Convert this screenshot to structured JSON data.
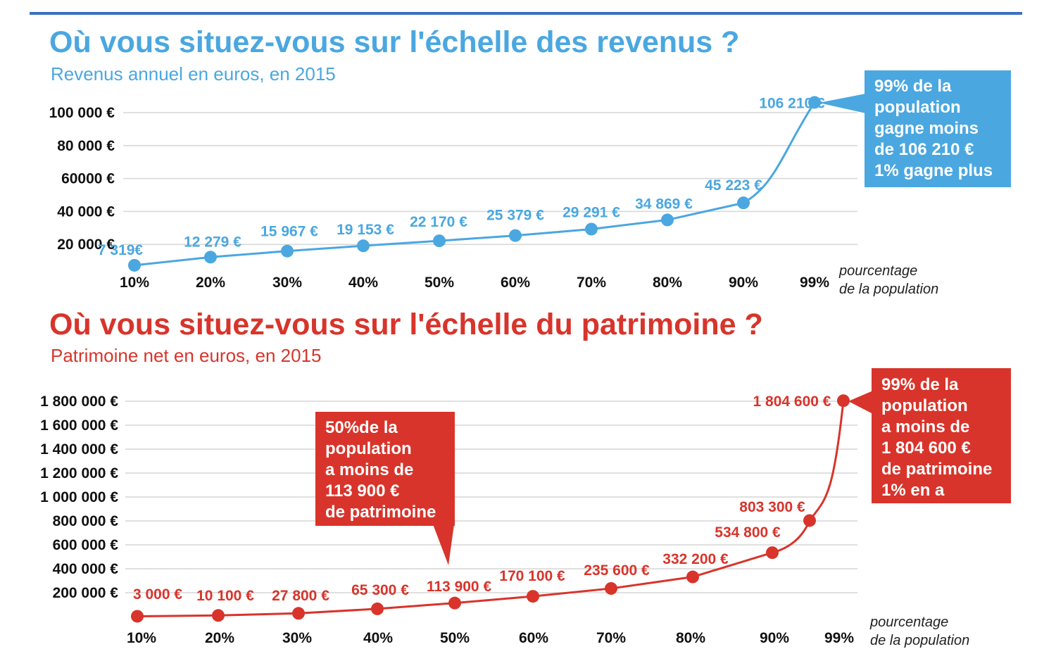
{
  "revenus": {
    "title": "Où vous situez-vous sur l'échelle des revenus ?",
    "subtitle": "Revenus annuel en euros, en 2015",
    "callout": [
      "99% de la",
      "population",
      "gagne moins",
      "de 106 210 €",
      "1% gagne plus"
    ],
    "axis_note": [
      "pourcentage",
      "de la population"
    ],
    "colors": {
      "line": "#4aa7e0",
      "callout": "#4aa7e0"
    },
    "chart_data": {
      "type": "line",
      "x": [
        "10%",
        "20%",
        "30%",
        "40%",
        "50%",
        "60%",
        "70%",
        "80%",
        "90%",
        "99%"
      ],
      "values": [
        7319,
        12279,
        15967,
        19153,
        22170,
        25379,
        29291,
        34869,
        45223,
        106210
      ],
      "labels": [
        "7 319€",
        "12 279 €",
        "15 967 €",
        "19 153 €",
        "22 170 €",
        "25 379 €",
        "29 291 €",
        "34 869 €",
        "45 223 €",
        "106 210 €"
      ],
      "yticks": [
        20000,
        40000,
        60000,
        80000,
        100000
      ],
      "ytick_labels": [
        "20 000 €",
        "40 000 €",
        "60000 €",
        "80 000 €",
        "100 000 €"
      ],
      "ylim": [
        0,
        100000
      ],
      "grid": true
    }
  },
  "patrimoine": {
    "title": "Où vous situez-vous sur l'échelle du patrimoine ?",
    "subtitle": "Patrimoine net en euros, en 2015",
    "callout_mid": [
      "50%de la",
      "population",
      "a moins de",
      "113 900 €",
      "de patrimoine"
    ],
    "callout": [
      "99% de la",
      "population",
      "a moins de",
      "1 804 600 €",
      "de patrimoine",
      "1% en a"
    ],
    "axis_note": [
      "pourcentage",
      "de la population"
    ],
    "colors": {
      "line": "#d8342b",
      "callout": "#d8342b"
    },
    "chart_data": {
      "type": "line",
      "x": [
        "10%",
        "20%",
        "30%",
        "40%",
        "50%",
        "60%",
        "70%",
        "80%",
        "90%",
        "95%",
        "99%"
      ],
      "tick_x": [
        "10%",
        "20%",
        "30%",
        "40%",
        "50%",
        "60%",
        "70%",
        "80%",
        "90%",
        "99%"
      ],
      "values": [
        3000,
        10100,
        27800,
        65300,
        113900,
        170100,
        235600,
        332200,
        534800,
        803300,
        1804600
      ],
      "labels": [
        "3 000 €",
        "10 100 €",
        "27 800 €",
        "65 300 €",
        "113 900 €",
        "170 100 €",
        "235 600 €",
        "332 200 €",
        "534 800 €",
        "803 300 €",
        "1 804 600 €"
      ],
      "yticks": [
        200000,
        400000,
        600000,
        800000,
        1000000,
        1200000,
        1400000,
        1600000,
        1800000
      ],
      "ytick_labels": [
        "200 000 €",
        "400 000 €",
        "600 000 €",
        "800 000 €",
        "1 000 000 €",
        "1 200 000 €",
        "1 400 000 €",
        "1 600 000 €",
        "1 800 000 €"
      ],
      "ylim": [
        0,
        1800000
      ],
      "grid": true
    }
  }
}
